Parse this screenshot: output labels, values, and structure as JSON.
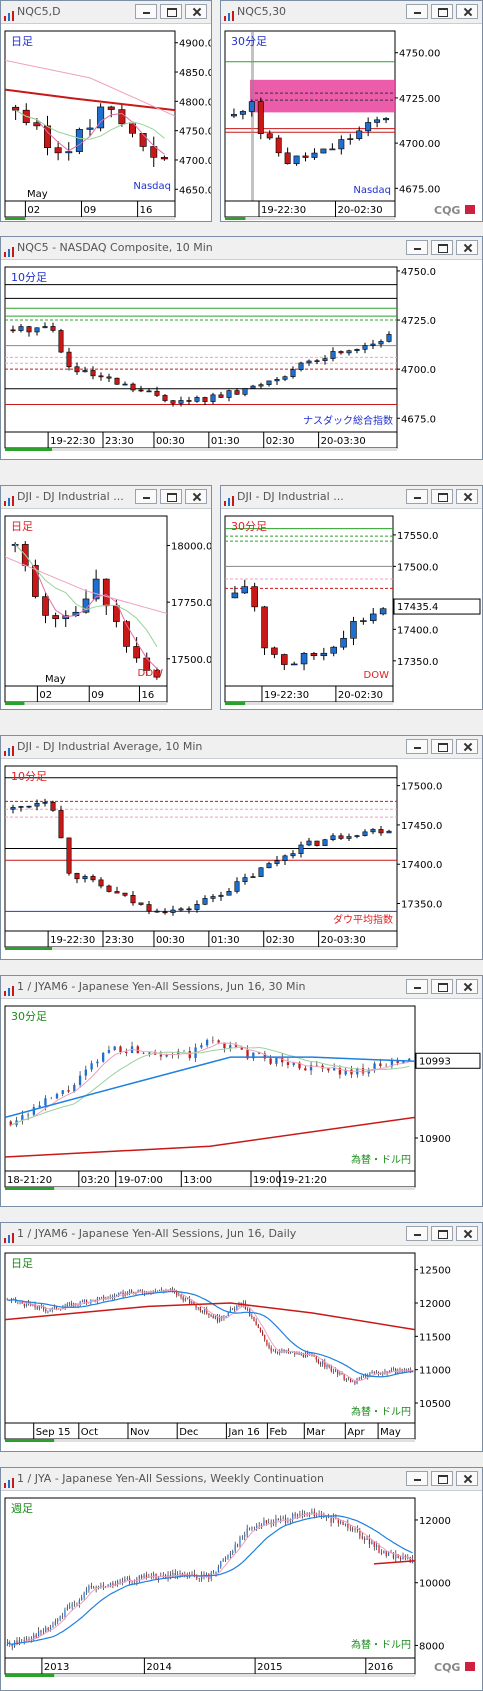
{
  "windows": [
    {
      "id": "w1",
      "title": "NQC5,D",
      "label": "日足",
      "label_color": "#2030d0",
      "watermark": "Nasdaq",
      "watermark_color": "#2030d0",
      "y_ticks": [
        "4900.0",
        "4850.0",
        "4800.0",
        "4750.0",
        "4700.0",
        "4650.0"
      ],
      "x_ticks": [
        "02",
        "09",
        "16"
      ],
      "month": "May",
      "cqg": false
    },
    {
      "id": "w2",
      "title": "NQC5,30",
      "label": "30分足",
      "label_color": "#2030d0",
      "watermark": "Nasdaq",
      "watermark_color": "#2030d0",
      "y_ticks": [
        "4750.00",
        "4725.00",
        "4700.00",
        "4675.00"
      ],
      "x_ticks": [
        "19-22:30",
        "20-02:30"
      ],
      "cqg": true
    },
    {
      "id": "w3",
      "title": "NQC5 - NASDAQ Composite, 10 Min",
      "label": "10分足",
      "label_color": "#2030d0",
      "watermark": "ナスダック総合指数",
      "watermark_color": "#2030d0",
      "y_ticks": [
        "4750.0",
        "4725.0",
        "4700.0",
        "4675.0"
      ],
      "x_ticks": [
        "19-22:30",
        "23:30",
        "00:30",
        "01:30",
        "02:30",
        "20-03:30"
      ]
    },
    {
      "id": "w4",
      "title": "DJI - DJ Industrial ...",
      "label": "日足",
      "label_color": "#e02020",
      "watermark": "DOW",
      "watermark_color": "#e02020",
      "y_ticks": [
        "18000.0",
        "17750.0",
        "17500.0"
      ],
      "x_ticks": [
        "02",
        "09",
        "16"
      ],
      "month": "May"
    },
    {
      "id": "w5",
      "title": "DJI - DJ Industrial ...",
      "label": "30分足",
      "label_color": "#e02020",
      "watermark": "DOW",
      "watermark_color": "#e02020",
      "y_ticks": [
        "17550.0",
        "17500.0",
        "17400.0",
        "17350.0"
      ],
      "price_box": "17435.4",
      "x_ticks": [
        "19-22:30",
        "20-02:30"
      ]
    },
    {
      "id": "w6",
      "title": "DJI - DJ Industrial Average, 10 Min",
      "label": "10分足",
      "label_color": "#e02020",
      "watermark": "ダウ平均指数",
      "watermark_color": "#e02020",
      "y_ticks": [
        "17500.0",
        "17450.0",
        "17400.0",
        "17350.0"
      ],
      "x_ticks": [
        "19-22:30",
        "23:30",
        "00:30",
        "01:30",
        "02:30",
        "20-03:30"
      ]
    },
    {
      "id": "w7",
      "title": "1 / JYAM6 - Japanese Yen-All Sessions, Jun 16, 30 Min",
      "label": "30分足",
      "label_color": "#1a8a1a",
      "watermark": "為替・ドル円",
      "watermark_color": "#1a8a1a",
      "y_ticks": [
        "10900"
      ],
      "price_box": "10993",
      "x_ticks": [
        "18-21:20",
        "03:20",
        "19-07:00",
        "13:00",
        "19:00",
        "19-21:20"
      ]
    },
    {
      "id": "w8",
      "title": "1 / JYAM6 - Japanese Yen-All Sessions, Jun 16, Daily",
      "label": "日足",
      "label_color": "#1a8a1a",
      "watermark": "為替・ドル円",
      "watermark_color": "#1a8a1a",
      "y_ticks": [
        "12500",
        "12000",
        "11500",
        "11000",
        "10500"
      ],
      "x_ticks": [
        "Sep 15",
        "Oct",
        "Nov",
        "Dec",
        "Jan 16",
        "Feb",
        "Mar",
        "Apr",
        "May"
      ]
    },
    {
      "id": "w9",
      "title": "1 / JYA - Japanese Yen-All Sessions, Weekly Continuation",
      "label": "週足",
      "label_color": "#1a8a1a",
      "watermark": "為替・ドル円",
      "watermark_color": "#1a8a1a",
      "y_ticks": [
        "12000",
        "10000",
        "8000"
      ],
      "x_ticks": [
        "2013",
        "2014",
        "2015",
        "2016"
      ],
      "cqg": true
    }
  ],
  "cqg_text": "CQG",
  "colors": {
    "up": "#1e6fd0",
    "down": "#c81818",
    "pink_band": "#e8409c"
  }
}
